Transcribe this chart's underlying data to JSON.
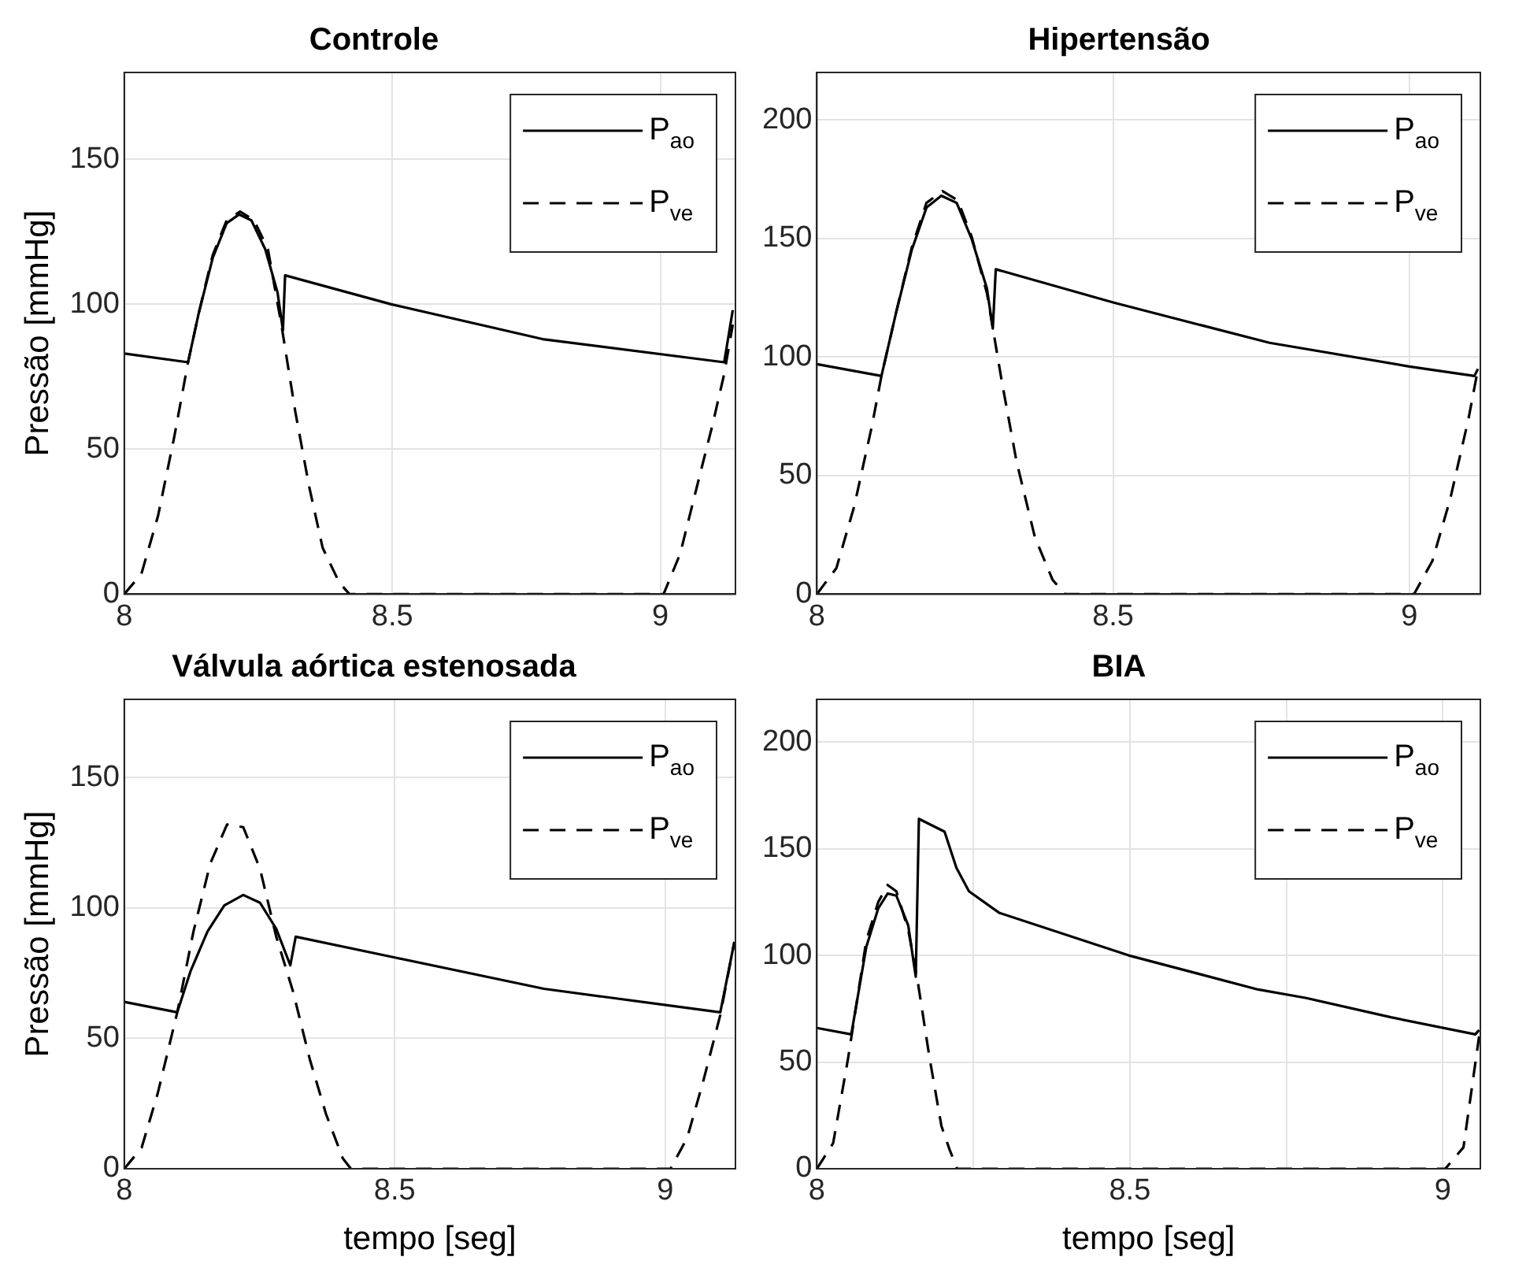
{
  "chart_data": [
    {
      "type": "line",
      "title": "Controle",
      "ylabel": "Pressão [mmHg]",
      "xlim": [
        8,
        9.14
      ],
      "xticks": [
        8,
        8.5,
        9
      ],
      "ylim": [
        0,
        180
      ],
      "yticks": [
        0,
        50,
        100,
        150
      ],
      "grid": true,
      "legend": "top right",
      "marker": "none",
      "series": [
        {
          "name": "P$_{ao}$",
          "color": "#000000",
          "line_style": "solid",
          "x": [
            8.0,
            8.119,
            8.139,
            8.165,
            8.191,
            8.214,
            8.237,
            8.263,
            8.286,
            8.296,
            8.3,
            8.498,
            8.78,
            9.119,
            9.135
          ],
          "values": [
            83,
            80,
            97,
            116,
            128,
            131,
            129,
            119,
            104,
            91,
            110,
            100,
            88,
            80,
            98
          ]
        },
        {
          "name": "P$_{ve}$",
          "color": "#000000",
          "line_style": "dashed",
          "x": [
            8.0,
            8.032,
            8.063,
            8.093,
            8.119,
            8.139,
            8.165,
            8.191,
            8.216,
            8.242,
            8.268,
            8.293,
            8.319,
            8.345,
            8.37,
            8.401,
            8.42,
            9.006,
            9.037,
            9.068,
            9.098,
            9.119,
            9.135
          ],
          "values": [
            0,
            7,
            27,
            54,
            80,
            97,
            117,
            129,
            132,
            129,
            119,
            93,
            63,
            37,
            16,
            4,
            0,
            0,
            14,
            37,
            59,
            76,
            93
          ]
        }
      ]
    },
    {
      "type": "line",
      "title": "Hipertensão",
      "xlim": [
        8,
        9.12
      ],
      "xticks": [
        8,
        8.5,
        9
      ],
      "ylim": [
        0,
        220
      ],
      "yticks": [
        0,
        50,
        100,
        150,
        200
      ],
      "grid": true,
      "legend": "top right",
      "marker": "none",
      "series": [
        {
          "name": "P$_{ao}$",
          "color": "#000000",
          "line_style": "solid",
          "x": [
            8.0,
            8.109,
            8.134,
            8.16,
            8.185,
            8.21,
            8.236,
            8.261,
            8.287,
            8.297,
            8.302,
            8.5,
            8.764,
            9.0,
            9.11,
            9.116
          ],
          "values": [
            97,
            92,
            119,
            145,
            163,
            168,
            165,
            150,
            129,
            112,
            137,
            123,
            106,
            96,
            92,
            95
          ]
        },
        {
          "name": "P$_{ve}$",
          "color": "#000000",
          "line_style": "dashed",
          "x": [
            8.0,
            8.033,
            8.063,
            8.093,
            8.109,
            8.134,
            8.16,
            8.185,
            8.212,
            8.238,
            8.261,
            8.287,
            8.312,
            8.337,
            8.368,
            8.398,
            8.419,
            9.008,
            9.039,
            9.069,
            9.1,
            9.116
          ],
          "values": [
            0,
            11,
            37,
            71,
            92,
            119,
            146,
            165,
            170,
            166,
            151,
            127,
            90,
            56,
            24,
            6,
            0,
            0,
            14,
            40,
            74,
            95
          ]
        }
      ]
    },
    {
      "type": "line",
      "title": "Válvula aórtica estenosada",
      "xlabel": "tempo [seg]",
      "ylabel": "Pressão [mmHg]",
      "xlim": [
        8,
        9.13
      ],
      "xticks": [
        8,
        8.5,
        9
      ],
      "ylim": [
        0,
        180
      ],
      "yticks": [
        0,
        50,
        100,
        150
      ],
      "grid": true,
      "legend": "top right",
      "marker": "none",
      "series": [
        {
          "name": "P$_{ao}$",
          "color": "#000000",
          "line_style": "solid",
          "x": [
            8.0,
            8.098,
            8.123,
            8.154,
            8.185,
            8.22,
            8.251,
            8.281,
            8.307,
            8.317,
            8.5,
            8.776,
            9.102,
            9.128
          ],
          "values": [
            64,
            60,
            76,
            91,
            101,
            105,
            102,
            92,
            78,
            89,
            81,
            69,
            60,
            87
          ]
        },
        {
          "name": "P$_{ve}$",
          "color": "#000000",
          "line_style": "dashed",
          "x": [
            8.0,
            8.032,
            8.062,
            8.098,
            8.128,
            8.159,
            8.19,
            8.22,
            8.251,
            8.281,
            8.312,
            8.343,
            8.373,
            8.404,
            8.419,
            9.01,
            9.041,
            9.071,
            9.102,
            9.128
          ],
          "values": [
            0,
            8,
            29,
            60,
            91,
            117,
            132,
            131,
            115,
            89,
            68,
            42,
            21,
            4,
            0,
            0,
            12,
            34,
            59,
            87
          ]
        }
      ]
    },
    {
      "type": "line",
      "title": "BIA",
      "xlabel": "tempo [seg]",
      "xlim": [
        8,
        9.06
      ],
      "xticks": [
        8,
        {
          "value": 8.25,
          "label": null
        },
        8.5,
        {
          "value": 8.75,
          "label": null
        },
        9
      ],
      "ylim": [
        0,
        220
      ],
      "yticks": [
        0,
        50,
        100,
        150,
        200
      ],
      "grid": true,
      "legend": "top right",
      "marker": "none",
      "series": [
        {
          "name": "P$_{ao}$",
          "color": "#000000",
          "line_style": "solid",
          "x": [
            8.0,
            8.055,
            8.079,
            8.098,
            8.113,
            8.127,
            8.146,
            8.158,
            8.163,
            8.204,
            8.223,
            8.243,
            8.291,
            8.498,
            8.705,
            8.782,
            8.917,
            9.052,
            9.058
          ],
          "values": [
            66,
            63,
            104,
            122,
            129,
            128,
            114,
            90,
            164,
            158,
            141,
            130,
            120,
            100,
            84,
            80,
            71,
            63,
            65
          ]
        },
        {
          "name": "P$_{ve}$",
          "color": "#000000",
          "line_style": "dashed",
          "x": [
            8.0,
            8.026,
            8.05,
            8.079,
            8.098,
            8.113,
            8.127,
            8.146,
            8.161,
            8.18,
            8.199,
            8.212,
            8.224,
            9.004,
            9.033,
            9.058
          ],
          "values": [
            0,
            12,
            52,
            107,
            125,
            133,
            130,
            112,
            88,
            52,
            20,
            9,
            0,
            0,
            10,
            62
          ]
        }
      ]
    }
  ]
}
